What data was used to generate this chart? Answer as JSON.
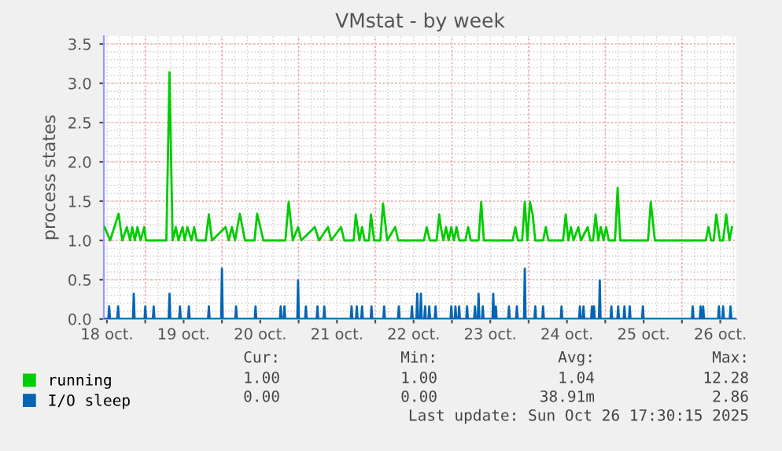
{
  "chart_data": {
    "type": "line",
    "title": "VMstat - by week",
    "ylabel": "process states",
    "xlim": [
      "2025-10-18T11:02",
      "2025-10-26T17:02"
    ],
    "ylim": [
      0,
      3.6
    ],
    "xticks": [
      {
        "value": "2025-10-18T12:00",
        "label": "18 oct."
      },
      {
        "value": "2025-10-19T00:00",
        "label": null
      },
      {
        "value": "2025-10-19T12:00",
        "label": "19 oct."
      },
      {
        "value": "2025-10-20T00:00",
        "label": null
      },
      {
        "value": "2025-10-20T12:00",
        "label": "20 oct."
      },
      {
        "value": "2025-10-21T00:00",
        "label": null
      },
      {
        "value": "2025-10-21T12:00",
        "label": "21 oct."
      },
      {
        "value": "2025-10-22T00:00",
        "label": null
      },
      {
        "value": "2025-10-22T12:00",
        "label": "22 oct."
      },
      {
        "value": "2025-10-23T00:00",
        "label": null
      },
      {
        "value": "2025-10-23T12:00",
        "label": "23 oct."
      },
      {
        "value": "2025-10-24T00:00",
        "label": null
      },
      {
        "value": "2025-10-24T12:00",
        "label": "24 oct."
      },
      {
        "value": "2025-10-25T00:00",
        "label": null
      },
      {
        "value": "2025-10-25T12:00",
        "label": "25 oct."
      },
      {
        "value": "2025-10-26T00:00",
        "label": null
      },
      {
        "value": "2025-10-26T12:00",
        "label": "26 oct."
      }
    ],
    "yticks": [
      {
        "value": 0,
        "label": "0.0"
      },
      {
        "value": 0.5,
        "label": "0.5"
      },
      {
        "value": 1,
        "label": "1.0"
      },
      {
        "value": 1.5,
        "label": "1.5"
      },
      {
        "value": 2,
        "label": "2.0"
      },
      {
        "value": 2.5,
        "label": "2.5"
      },
      {
        "value": 3,
        "label": "3.0"
      },
      {
        "value": 3.5,
        "label": "3.5"
      }
    ],
    "grid": true,
    "legend": "bottom left",
    "marker": "none",
    "line_style": "solid",
    "series": [
      {
        "name": "running",
        "color": "#00cc00",
        "x": [
          "2025-10-18T11:17",
          "2025-10-18T13:00",
          "2025-10-18T14:20",
          "2025-10-18T15:39",
          "2025-10-18T16:48",
          "2025-10-18T18:16",
          "2025-10-18T19:15",
          "2025-10-18T19:55",
          "2025-10-18T20:44",
          "2025-10-18T21:33",
          "2025-10-18T22:32",
          "2025-10-18T23:41",
          "2025-10-19T00:12",
          "2025-10-19T06:36",
          "2025-10-19T07:35",
          "2025-10-19T08:34",
          "2025-10-19T09:33",
          "2025-10-19T10:22",
          "2025-10-19T11:41",
          "2025-10-19T12:20",
          "2025-10-19T13:11",
          "2025-10-19T14:28",
          "2025-10-19T15:19",
          "2025-10-19T16:08",
          "2025-10-19T18:55",
          "2025-10-19T19:54",
          "2025-10-19T20:53",
          "2025-10-20T01:09",
          "2025-10-20T02:08",
          "2025-10-20T03:07",
          "2025-10-20T04:06",
          "2025-10-20T05:36",
          "2025-10-20T07:13",
          "2025-10-20T10:12",
          "2025-10-20T11:01",
          "2025-10-20T12:00",
          "2025-10-20T12:59",
          "2025-10-20T19:52",
          "2025-10-20T20:53",
          "2025-10-20T22:11",
          "2025-10-20T23:50",
          "2025-10-21T00:49",
          "2025-10-21T05:05",
          "2025-10-21T06:23",
          "2025-10-21T09:12",
          "2025-10-21T10:11",
          "2025-10-21T13:18",
          "2025-10-21T14:17",
          "2025-10-21T17:14",
          "2025-10-21T17:54",
          "2025-10-21T19:02",
          "2025-10-21T19:52",
          "2025-10-21T20:41",
          "2025-10-21T22:00",
          "2025-10-21T22:39",
          "2025-10-21T23:38",
          "2025-10-22T01:36",
          "2025-10-22T02:25",
          "2025-10-22T03:45",
          "2025-10-22T06:13",
          "2025-10-22T07:12",
          "2025-10-22T15:14",
          "2025-10-22T16:05",
          "2025-10-22T17:04",
          "2025-10-22T19:12",
          "2025-10-22T20:01",
          "2025-10-22T20:31",
          "2025-10-22T21:20",
          "2025-10-22T22:09",
          "2025-10-22T22:58",
          "2025-10-22T23:48",
          "2025-10-23T00:37",
          "2025-10-23T01:26",
          "2025-10-23T02:15",
          "2025-10-23T04:13",
          "2025-10-23T05:04",
          "2025-10-23T05:53",
          "2025-10-23T08:20",
          "2025-10-23T09:10",
          "2025-10-23T09:59",
          "2025-10-23T19:00",
          "2025-10-23T19:51",
          "2025-10-23T20:40",
          "2025-10-23T21:59",
          "2025-10-23T22:48",
          "2025-10-23T23:37",
          "2025-10-24T00:26",
          "2025-10-24T01:16",
          "2025-10-24T02:05",
          "2025-10-24T04:32",
          "2025-10-24T05:23",
          "2025-10-24T06:12",
          "2025-10-24T10:47",
          "2025-10-24T11:37",
          "2025-10-24T12:26",
          "2025-10-24T13:15",
          "2025-10-24T14:04",
          "2025-10-24T15:33",
          "2025-10-24T16:22",
          "2025-10-24T18:30",
          "2025-10-24T19:19",
          "2025-10-24T20:10",
          "2025-10-24T20:59",
          "2025-10-24T21:48",
          "2025-10-24T22:36",
          "2025-10-24T23:27",
          "2025-10-25T00:16",
          "2025-10-25T01:05",
          "2025-10-25T03:03",
          "2025-10-25T03:52",
          "2025-10-25T04:42",
          "2025-10-25T13:24",
          "2025-10-25T14:14",
          "2025-10-25T15:32",
          "2025-10-26T07:28",
          "2025-10-26T08:17",
          "2025-10-26T09:07",
          "2025-10-26T09:56",
          "2025-10-26T10:45",
          "2025-10-26T11:54",
          "2025-10-26T12:53",
          "2025-10-26T13:52",
          "2025-10-26T14:51",
          "2025-10-26T15:40"
        ],
        "values": [
          1.17,
          1.0,
          1.17,
          1.34,
          1.0,
          1.17,
          1.0,
          1.17,
          1.0,
          1.17,
          1.0,
          1.17,
          1.0,
          1.0,
          3.14,
          1.0,
          1.17,
          1.0,
          1.17,
          1.0,
          1.17,
          1.0,
          1.17,
          1.0,
          1.0,
          1.33,
          1.0,
          1.17,
          1.0,
          1.17,
          1.0,
          1.34,
          1.0,
          1.0,
          1.34,
          1.17,
          1.0,
          1.0,
          1.49,
          1.0,
          1.17,
          1.0,
          1.17,
          1.0,
          1.17,
          1.0,
          1.17,
          1.0,
          1.0,
          1.33,
          1.0,
          1.17,
          1.0,
          1.0,
          1.33,
          1.0,
          1.0,
          1.47,
          1.0,
          1.17,
          1.0,
          1.0,
          1.17,
          1.0,
          1.0,
          1.33,
          1.17,
          1.0,
          1.17,
          1.0,
          1.17,
          1.0,
          1.17,
          1.0,
          1.0,
          1.17,
          1.0,
          1.0,
          1.49,
          1.0,
          1.0,
          1.17,
          1.0,
          1.0,
          1.49,
          1.0,
          1.49,
          1.33,
          1.0,
          1.0,
          1.17,
          1.0,
          1.0,
          1.33,
          1.0,
          1.17,
          1.0,
          1.17,
          1.0,
          1.17,
          1.0,
          1.0,
          1.33,
          1.0,
          1.17,
          1.0,
          1.17,
          1.0,
          1.0,
          1.67,
          1.0,
          1.0,
          1.49,
          1.0,
          1.0,
          1.17,
          1.0,
          1.0,
          1.33,
          1.0,
          1.0,
          1.33,
          1.0,
          1.17
        ]
      },
      {
        "name": "I/O sleep",
        "color": "#0066b3",
        "x": [
          "2025-10-18T11:17",
          "2025-10-18T12:27",
          "2025-10-18T12:42",
          "2025-10-18T12:57",
          "2025-10-18T15:14",
          "2025-10-18T15:29",
          "2025-10-18T15:44",
          "2025-10-18T20:09",
          "2025-10-18T20:24",
          "2025-10-18T20:39",
          "2025-10-18T23:46",
          "2025-10-19T00:01",
          "2025-10-19T00:16",
          "2025-10-19T02:23",
          "2025-10-19T02:38",
          "2025-10-19T02:53",
          "2025-10-19T07:20",
          "2025-10-19T07:35",
          "2025-10-19T07:50",
          "2025-10-19T10:37",
          "2025-10-19T10:52",
          "2025-10-19T11:07",
          "2025-10-19T13:24",
          "2025-10-19T13:39",
          "2025-10-19T13:54",
          "2025-10-19T19:39",
          "2025-10-19T19:54",
          "2025-10-19T20:09",
          "2025-10-19T23:45",
          "2025-10-20T00:00",
          "2025-10-20T00:15",
          "2025-10-20T04:11",
          "2025-10-20T04:26",
          "2025-10-20T04:41",
          "2025-10-20T10:16",
          "2025-10-20T10:31",
          "2025-10-20T10:46",
          "2025-10-20T18:09",
          "2025-10-20T18:24",
          "2025-10-20T18:39",
          "2025-10-20T19:19",
          "2025-10-20T19:34",
          "2025-10-20T19:49",
          "2025-10-20T23:35",
          "2025-10-20T23:50",
          "2025-10-21T00:05",
          "2025-10-21T02:02",
          "2025-10-21T02:17",
          "2025-10-21T02:32",
          "2025-10-21T05:39",
          "2025-10-21T05:54",
          "2025-10-21T06:09",
          "2025-10-21T07:47",
          "2025-10-21T08:02",
          "2025-10-21T08:17",
          "2025-10-21T16:20",
          "2025-10-21T16:35",
          "2025-10-21T16:50",
          "2025-10-21T17:58",
          "2025-10-21T18:13",
          "2025-10-21T18:28",
          "2025-10-21T19:37",
          "2025-10-21T19:52",
          "2025-10-21T20:07",
          "2025-10-21T22:34",
          "2025-10-21T22:49",
          "2025-10-21T23:04",
          "2025-10-22T02:31",
          "2025-10-22T02:46",
          "2025-10-22T03:01",
          "2025-10-22T07:07",
          "2025-10-22T07:22",
          "2025-10-22T07:37",
          "2025-10-22T11:13",
          "2025-10-22T11:28",
          "2025-10-22T11:43",
          "2025-10-22T12:53",
          "2025-10-22T13:08",
          "2025-10-22T13:23",
          "2025-10-22T14:02",
          "2025-10-22T14:17",
          "2025-10-22T14:32",
          "2025-10-22T15:20",
          "2025-10-22T15:35",
          "2025-10-22T15:50",
          "2025-10-22T16:39",
          "2025-10-22T16:54",
          "2025-10-22T17:09",
          "2025-10-22T18:37",
          "2025-10-22T18:52",
          "2025-10-22T19:07",
          "2025-10-22T23:33",
          "2025-10-22T23:48",
          "2025-10-23T00:03",
          "2025-10-23T00:51",
          "2025-10-23T01:06",
          "2025-10-23T01:21",
          "2025-10-23T02:00",
          "2025-10-23T02:15",
          "2025-10-23T02:30",
          "2025-10-23T04:29",
          "2025-10-23T04:44",
          "2025-10-23T04:59",
          "2025-10-23T06:57",
          "2025-10-23T07:12",
          "2025-10-23T07:27",
          "2025-10-23T08:05",
          "2025-10-23T08:20",
          "2025-10-23T08:35",
          "2025-10-23T09:24",
          "2025-10-23T09:39",
          "2025-10-23T09:54",
          "2025-10-23T12:41",
          "2025-10-23T12:56",
          "2025-10-23T13:11",
          "2025-10-23T13:30",
          "2025-10-23T13:45",
          "2025-10-23T14:00",
          "2025-10-23T17:36",
          "2025-10-23T17:51",
          "2025-10-23T18:06",
          "2025-10-23T20:05",
          "2025-10-23T20:20",
          "2025-10-23T20:35",
          "2025-10-23T22:33",
          "2025-10-23T22:48",
          "2025-10-23T23:03",
          "2025-10-24T01:50",
          "2025-10-24T02:05",
          "2025-10-24T02:20",
          "2025-10-24T04:17",
          "2025-10-24T04:32",
          "2025-10-24T04:47",
          "2025-10-24T10:03",
          "2025-10-24T10:18",
          "2025-10-24T10:33",
          "2025-10-24T15:48",
          "2025-10-24T16:03",
          "2025-10-24T16:18",
          "2025-10-24T16:56",
          "2025-10-24T17:11",
          "2025-10-24T17:26",
          "2025-10-24T19:34",
          "2025-10-24T19:49",
          "2025-10-24T20:04",
          "2025-10-24T20:13",
          "2025-10-24T20:28",
          "2025-10-24T20:43",
          "2025-10-24T22:01",
          "2025-10-24T22:16",
          "2025-10-24T22:31",
          "2025-10-25T01:39",
          "2025-10-25T01:54",
          "2025-10-25T02:09",
          "2025-10-25T03:47",
          "2025-10-25T04:02",
          "2025-10-25T04:17",
          "2025-10-25T05:45",
          "2025-10-25T06:00",
          "2025-10-25T06:15",
          "2025-10-25T07:24",
          "2025-10-25T07:39",
          "2025-10-25T07:54",
          "2025-10-25T11:31",
          "2025-10-25T11:46",
          "2025-10-25T12:01",
          "2025-10-26T03:07",
          "2025-10-26T03:22",
          "2025-10-26T03:37",
          "2025-10-26T05:35",
          "2025-10-26T05:50",
          "2025-10-26T06:05",
          "2025-10-26T06:24",
          "2025-10-26T06:39",
          "2025-10-26T06:54",
          "2025-10-26T11:19",
          "2025-10-26T11:34",
          "2025-10-26T11:49",
          "2025-10-26T12:38",
          "2025-10-26T12:53",
          "2025-10-26T13:08",
          "2025-10-26T14:57",
          "2025-10-26T15:12",
          "2025-10-26T15:27",
          "2025-10-26T16:48"
        ],
        "values": [
          0,
          0,
          0.16,
          0,
          0,
          0.16,
          0,
          0,
          0.32,
          0,
          0,
          0.16,
          0,
          0,
          0.16,
          0,
          0,
          0.32,
          0,
          0,
          0.16,
          0,
          0,
          0.16,
          0,
          0,
          0.16,
          0,
          0,
          0.64,
          0,
          0,
          0.16,
          0,
          0,
          0.16,
          0,
          0,
          0.16,
          0,
          0,
          0.16,
          0,
          0,
          0.49,
          0,
          0,
          0.16,
          0,
          0,
          0.16,
          0,
          0,
          0.16,
          0,
          0,
          0.16,
          0,
          0,
          0.16,
          0,
          0,
          0.16,
          0,
          0,
          0.16,
          0,
          0,
          0.16,
          0,
          0,
          0.16,
          0,
          0,
          0.16,
          0,
          0,
          0.32,
          0,
          0,
          0.32,
          0,
          0,
          0.16,
          0,
          0,
          0.16,
          0,
          0,
          0.16,
          0,
          0,
          0.16,
          0,
          0,
          0.16,
          0,
          0,
          0.16,
          0,
          0,
          0.16,
          0,
          0,
          0.16,
          0,
          0,
          0.32,
          0,
          0,
          0.16,
          0,
          0,
          0.32,
          0,
          0,
          0.16,
          0,
          0,
          0.16,
          0,
          0,
          0.16,
          0,
          0,
          0.64,
          0,
          0,
          0.16,
          0,
          0,
          0.16,
          0,
          0,
          0.16,
          0,
          0,
          0.16,
          0,
          0,
          0.16,
          0,
          0,
          0.16,
          0,
          0,
          0.16,
          0,
          0,
          0.49,
          0,
          0,
          0.16,
          0,
          0,
          0.16,
          0,
          0,
          0.16,
          0,
          0,
          0.16,
          0,
          0,
          0.16,
          0,
          0,
          0.16,
          0,
          0,
          0.16,
          0,
          0,
          0.16,
          0,
          0,
          0.16,
          0,
          0,
          0.16,
          0,
          0,
          0.16,
          0,
          0
        ]
      }
    ],
    "annotations": [
      "Cur:",
      "Min:",
      "Avg:",
      "Max:",
      "1.00",
      "1.00",
      "1.04",
      "12.28",
      "0.00",
      "0.00",
      "38.91m",
      "2.86",
      "Last update: Sun Oct 26 17:30:15 2025"
    ]
  }
}
